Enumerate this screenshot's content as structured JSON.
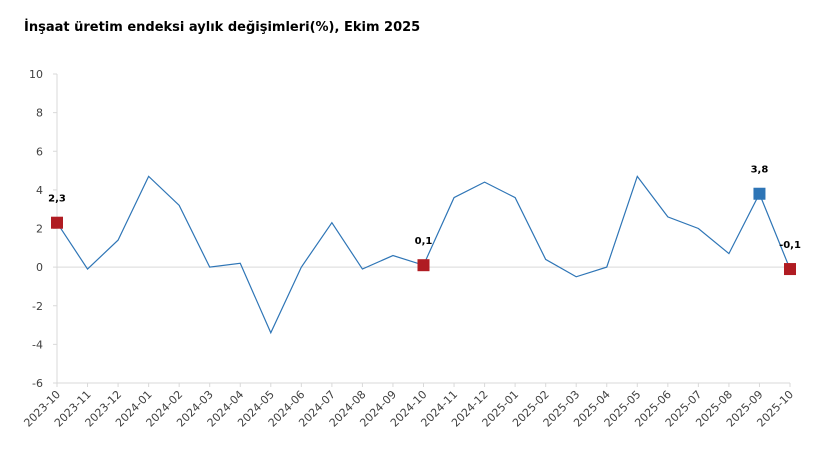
{
  "chart_data": {
    "type": "line",
    "title": "İnşaat üretim endeksi aylık değişimleri(%), Ekim 2025",
    "categories": [
      "2023-10",
      "2023-11",
      "2023-12",
      "2024-01",
      "2024-02",
      "2024-03",
      "2024-04",
      "2024-05",
      "2024-06",
      "2024-07",
      "2024-08",
      "2024-09",
      "2024-10",
      "2024-11",
      "2024-12",
      "2025-01",
      "2025-02",
      "2025-03",
      "2025-04",
      "2025-05",
      "2025-06",
      "2025-07",
      "2025-08",
      "2025-09",
      "2025-10"
    ],
    "series": [
      {
        "color": "#2e75b6",
        "values": [
          2.3,
          -0.1,
          1.4,
          4.7,
          3.2,
          0.0,
          0.2,
          -3.4,
          0.0,
          2.3,
          -0.1,
          0.6,
          0.1,
          3.6,
          4.4,
          3.6,
          0.4,
          -0.5,
          0.0,
          4.7,
          2.6,
          2.0,
          0.7,
          3.8,
          -0.1
        ],
        "value_labels": [
          "2,3",
          null,
          null,
          null,
          null,
          null,
          null,
          null,
          null,
          null,
          null,
          null,
          "0,1",
          null,
          null,
          null,
          null,
          null,
          null,
          null,
          null,
          null,
          null,
          "3,8",
          "-0,1"
        ],
        "marker_colors": [
          "#b01c22",
          null,
          null,
          null,
          null,
          null,
          null,
          null,
          null,
          null,
          null,
          null,
          "#b01c22",
          null,
          null,
          null,
          null,
          null,
          null,
          null,
          null,
          null,
          null,
          "#2e75b6",
          "#b01c22"
        ]
      }
    ],
    "ylim": [
      -6,
      10
    ],
    "yticks": [
      -6,
      -4,
      -2,
      0,
      2,
      4,
      6,
      8,
      10
    ]
  }
}
